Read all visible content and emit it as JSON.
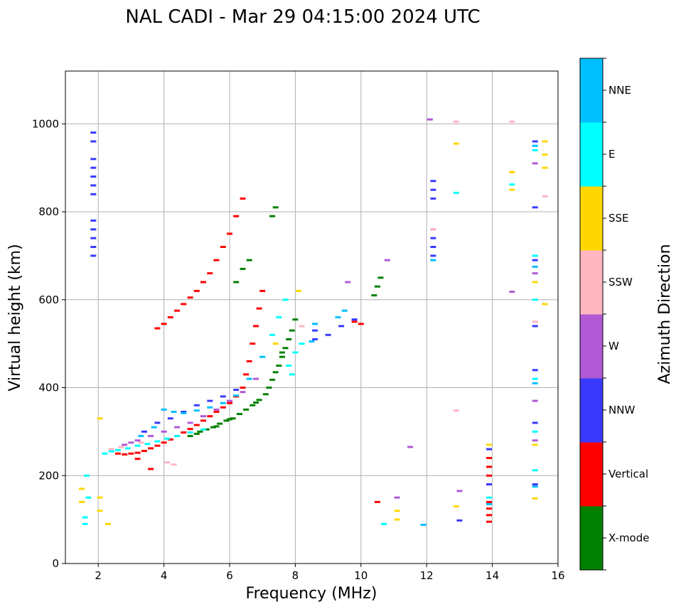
{
  "chart_data": {
    "type": "scatter",
    "title": "NAL CADI - Mar 29 04:15:00 2024 UTC",
    "xlabel": "Frequency (MHz)",
    "ylabel": "Virtual height (km)",
    "xlim": [
      1,
      16
    ],
    "ylim": [
      0,
      1120
    ],
    "xticks": [
      2,
      4,
      6,
      8,
      10,
      12,
      14,
      16
    ],
    "yticks": [
      0,
      200,
      400,
      600,
      800,
      1000
    ],
    "grid": true,
    "colorbar": {
      "title": "Azimuth Direction",
      "categories": [
        "X-mode",
        "Vertical",
        "NNW",
        "W",
        "SSW",
        "SSE",
        "E",
        "NNE"
      ],
      "colors": [
        "#008000",
        "#ff0000",
        "#3a3aff",
        "#b05ad6",
        "#ffb6c1",
        "#ffd700",
        "#00ffff",
        "#00bfff"
      ]
    },
    "series": [
      {
        "name": "X-mode",
        "points": [
          [
            5.1,
            300
          ],
          [
            5.3,
            305
          ],
          [
            5.5,
            310
          ],
          [
            5.7,
            318
          ],
          [
            5.9,
            325
          ],
          [
            6.1,
            330
          ],
          [
            6.3,
            340
          ],
          [
            6.5,
            350
          ],
          [
            6.7,
            360
          ],
          [
            6.9,
            372
          ],
          [
            7.1,
            385
          ],
          [
            7.2,
            400
          ],
          [
            7.3,
            418
          ],
          [
            7.4,
            435
          ],
          [
            7.5,
            450
          ],
          [
            7.6,
            470
          ],
          [
            7.7,
            490
          ],
          [
            7.8,
            510
          ],
          [
            7.9,
            530
          ],
          [
            8.0,
            555
          ],
          [
            6.2,
            640
          ],
          [
            6.4,
            670
          ],
          [
            6.6,
            690
          ],
          [
            7.3,
            790
          ],
          [
            7.4,
            810
          ],
          [
            10.4,
            610
          ],
          [
            10.5,
            630
          ],
          [
            10.6,
            650
          ],
          [
            4.8,
            290
          ],
          [
            5.0,
            295
          ],
          [
            5.6,
            312
          ],
          [
            6.0,
            328
          ],
          [
            6.8,
            366
          ],
          [
            7.6,
            480
          ]
        ]
      },
      {
        "name": "Vertical",
        "points": [
          [
            2.6,
            250
          ],
          [
            2.8,
            248
          ],
          [
            3.0,
            250
          ],
          [
            3.2,
            252
          ],
          [
            3.4,
            256
          ],
          [
            3.6,
            262
          ],
          [
            3.8,
            268
          ],
          [
            4.0,
            275
          ],
          [
            4.2,
            282
          ],
          [
            4.4,
            290
          ],
          [
            4.6,
            298
          ],
          [
            4.8,
            306
          ],
          [
            5.0,
            315
          ],
          [
            5.2,
            325
          ],
          [
            5.4,
            335
          ],
          [
            5.6,
            345
          ],
          [
            5.8,
            355
          ],
          [
            6.0,
            365
          ],
          [
            6.2,
            380
          ],
          [
            6.4,
            400
          ],
          [
            6.5,
            430
          ],
          [
            6.6,
            460
          ],
          [
            6.7,
            500
          ],
          [
            6.8,
            540
          ],
          [
            6.9,
            580
          ],
          [
            7.0,
            620
          ],
          [
            3.8,
            535
          ],
          [
            4.0,
            545
          ],
          [
            4.2,
            560
          ],
          [
            4.4,
            575
          ],
          [
            4.6,
            590
          ],
          [
            4.8,
            605
          ],
          [
            5.0,
            620
          ],
          [
            5.2,
            640
          ],
          [
            5.4,
            660
          ],
          [
            5.6,
            690
          ],
          [
            5.8,
            720
          ],
          [
            6.0,
            750
          ],
          [
            6.2,
            790
          ],
          [
            6.4,
            830
          ],
          [
            9.8,
            550
          ],
          [
            10.0,
            545
          ],
          [
            13.9,
            95
          ],
          [
            13.9,
            110
          ],
          [
            13.9,
            125
          ],
          [
            13.9,
            140
          ],
          [
            13.9,
            180
          ],
          [
            13.9,
            200
          ],
          [
            13.9,
            220
          ],
          [
            13.9,
            240
          ],
          [
            10.5,
            140
          ],
          [
            3.6,
            215
          ],
          [
            3.2,
            238
          ]
        ]
      },
      {
        "name": "NNW",
        "points": [
          [
            1.85,
            700
          ],
          [
            1.85,
            720
          ],
          [
            1.85,
            740
          ],
          [
            1.85,
            760
          ],
          [
            1.85,
            780
          ],
          [
            1.85,
            840
          ],
          [
            1.85,
            860
          ],
          [
            1.85,
            880
          ],
          [
            1.85,
            900
          ],
          [
            1.85,
            920
          ],
          [
            1.85,
            960
          ],
          [
            1.85,
            980
          ],
          [
            3.4,
            300
          ],
          [
            3.8,
            320
          ],
          [
            4.2,
            330
          ],
          [
            4.6,
            345
          ],
          [
            5.0,
            360
          ],
          [
            5.4,
            370
          ],
          [
            5.8,
            380
          ],
          [
            6.2,
            395
          ],
          [
            8.6,
            510
          ],
          [
            8.6,
            530
          ],
          [
            9.0,
            520
          ],
          [
            9.4,
            540
          ],
          [
            9.8,
            555
          ],
          [
            12.2,
            700
          ],
          [
            12.2,
            720
          ],
          [
            12.2,
            740
          ],
          [
            12.2,
            830
          ],
          [
            12.2,
            850
          ],
          [
            12.2,
            870
          ],
          [
            15.3,
            180
          ],
          [
            15.3,
            320
          ],
          [
            15.3,
            440
          ],
          [
            15.3,
            540
          ],
          [
            15.3,
            690
          ],
          [
            15.3,
            810
          ],
          [
            15.3,
            960
          ],
          [
            13.0,
            98
          ],
          [
            13.9,
            260
          ],
          [
            13.9,
            180
          ]
        ]
      },
      {
        "name": "W",
        "points": [
          [
            2.8,
            270
          ],
          [
            3.0,
            275
          ],
          [
            3.2,
            280
          ],
          [
            3.6,
            290
          ],
          [
            4.0,
            300
          ],
          [
            4.4,
            310
          ],
          [
            4.8,
            320
          ],
          [
            5.2,
            335
          ],
          [
            5.6,
            350
          ],
          [
            6.0,
            370
          ],
          [
            6.4,
            390
          ],
          [
            6.8,
            420
          ],
          [
            12.1,
            1010
          ],
          [
            12.2,
            760
          ],
          [
            15.3,
            280
          ],
          [
            15.3,
            370
          ],
          [
            15.3,
            660
          ],
          [
            15.3,
            910
          ],
          [
            14.6,
            618
          ],
          [
            10.8,
            690
          ],
          [
            11.5,
            265
          ],
          [
            11.1,
            150
          ],
          [
            13.0,
            165
          ],
          [
            9.6,
            640
          ]
        ]
      },
      {
        "name": "SSW",
        "points": [
          [
            2.4,
            260
          ],
          [
            2.7,
            265
          ],
          [
            3.3,
            275
          ],
          [
            4.1,
            230
          ],
          [
            4.3,
            225
          ],
          [
            12.9,
            348
          ],
          [
            12.9,
            1005
          ],
          [
            14.6,
            1005
          ],
          [
            15.6,
            835
          ],
          [
            15.3,
            550
          ],
          [
            12.2,
            760
          ],
          [
            8.2,
            540
          ]
        ]
      },
      {
        "name": "SSE",
        "points": [
          [
            1.5,
            170
          ],
          [
            1.5,
            140
          ],
          [
            2.05,
            330
          ],
          [
            2.05,
            150
          ],
          [
            2.05,
            120
          ],
          [
            2.3,
            90
          ],
          [
            11.1,
            100
          ],
          [
            11.1,
            120
          ],
          [
            12.9,
            130
          ],
          [
            12.9,
            955
          ],
          [
            14.6,
            890
          ],
          [
            14.6,
            850
          ],
          [
            15.3,
            148
          ],
          [
            15.3,
            270
          ],
          [
            15.3,
            640
          ],
          [
            15.6,
            590
          ],
          [
            15.6,
            900
          ],
          [
            15.6,
            930
          ],
          [
            15.6,
            960
          ],
          [
            8.1,
            620
          ],
          [
            13.9,
            270
          ],
          [
            7.4,
            500
          ]
        ]
      },
      {
        "name": "E",
        "points": [
          [
            1.6,
            90
          ],
          [
            1.6,
            105
          ],
          [
            1.7,
            150
          ],
          [
            1.65,
            200
          ],
          [
            2.2,
            250
          ],
          [
            2.4,
            255
          ],
          [
            2.6,
            258
          ],
          [
            2.9,
            262
          ],
          [
            3.2,
            268
          ],
          [
            3.5,
            272
          ],
          [
            3.8,
            278
          ],
          [
            4.1,
            284
          ],
          [
            4.4,
            290
          ],
          [
            4.8,
            298
          ],
          [
            5.2,
            305
          ],
          [
            7.3,
            520
          ],
          [
            7.5,
            560
          ],
          [
            7.7,
            600
          ],
          [
            7.8,
            450
          ],
          [
            7.9,
            430
          ],
          [
            8.0,
            480
          ],
          [
            8.2,
            500
          ],
          [
            12.9,
            843
          ],
          [
            14.6,
            862
          ],
          [
            15.3,
            420
          ],
          [
            15.3,
            600
          ],
          [
            15.3,
            700
          ],
          [
            15.3,
            940
          ],
          [
            15.3,
            212
          ],
          [
            15.3,
            300
          ],
          [
            10.7,
            90
          ],
          [
            13.9,
            150
          ]
        ]
      },
      {
        "name": "NNE",
        "points": [
          [
            4.0,
            350
          ],
          [
            4.3,
            345
          ],
          [
            4.6,
            342
          ],
          [
            5.0,
            348
          ],
          [
            5.4,
            355
          ],
          [
            5.8,
            365
          ],
          [
            6.2,
            382
          ],
          [
            6.6,
            420
          ],
          [
            7.0,
            470
          ],
          [
            8.5,
            505
          ],
          [
            8.6,
            545
          ],
          [
            9.3,
            560
          ],
          [
            9.5,
            575
          ],
          [
            11.9,
            88
          ],
          [
            12.2,
            690
          ],
          [
            13.9,
            135
          ],
          [
            15.3,
            175
          ],
          [
            15.3,
            410
          ],
          [
            15.3,
            675
          ],
          [
            15.3,
            950
          ],
          [
            3.7,
            310
          ],
          [
            3.3,
            290
          ]
        ]
      }
    ]
  }
}
